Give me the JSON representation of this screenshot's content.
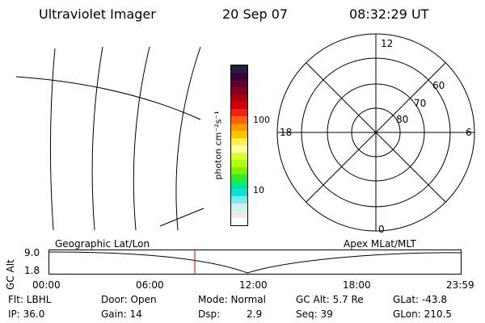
{
  "header": {
    "instrument": "Ultraviolet Imager",
    "date": "20 Sep 07",
    "time": "08:32:29 UT"
  },
  "colorbar": {
    "label": "photon cm⁻²s⁻¹",
    "tick_labels": [
      "100",
      "10"
    ],
    "colors": [
      "#202040",
      "#3a003a",
      "#5a0032",
      "#80001e",
      "#a80010",
      "#d0000c",
      "#f0201a",
      "#ff6010",
      "#ff9800",
      "#ffc400",
      "#fff04a",
      "#ffff9e",
      "#d8ff30",
      "#b0ff10",
      "#80f000",
      "#30e830",
      "#00e890",
      "#10e0d8",
      "#80e8e8",
      "#c8f4f4",
      "#ececec",
      "#ffffff"
    ]
  },
  "polar": {
    "hours": [
      "12",
      "18",
      "6",
      "0"
    ],
    "latitudes": [
      "60",
      "70",
      "80"
    ]
  },
  "panels": {
    "left_caption": "Geographic Lat/Lon",
    "right_caption": "Apex MLat/MLT"
  },
  "alt_plot": {
    "ylabel": "GC Alt",
    "yticks": [
      "9.0",
      "1.8"
    ],
    "xticks": [
      "00:00",
      "06:00",
      "12:00",
      "18:00",
      "23:59"
    ],
    "cursor_color": "#cc0000"
  },
  "status": {
    "filter": "Flt: LBHL",
    "ip": "IP: 36.0",
    "door": "Door: Open",
    "gain": "Gain: 14",
    "mode": "Mode: Normal",
    "dsp_label": "Dsp:",
    "dsp_value": "2.9",
    "gc_alt": "GC Alt: 5.7 Re",
    "seq": "Seq: 39",
    "glat": "GLat: -43.8",
    "glon": "GLon: 210.5"
  }
}
